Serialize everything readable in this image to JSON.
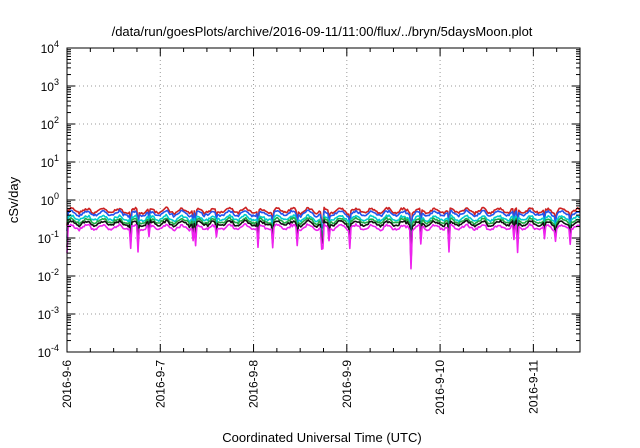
{
  "chart_data": {
    "type": "line",
    "title": "/data/run/goesPlots/archive/2016-09-11/11:00/flux/../bryn/5daysMoon.plot",
    "xlabel": "Coordinated Universal Time (UTC)",
    "ylabel": "cSv/day",
    "yscale": "log",
    "ylim": [
      0.0001,
      10000
    ],
    "xlim_days": [
      0,
      5.5
    ],
    "grid": true,
    "y_ticks": [
      {
        "exp": -4,
        "value": 0.0001
      },
      {
        "exp": -3,
        "value": 0.001
      },
      {
        "exp": -2,
        "value": 0.01
      },
      {
        "exp": -1,
        "value": 0.1
      },
      {
        "exp": 0,
        "value": 1
      },
      {
        "exp": 1,
        "value": 10
      },
      {
        "exp": 2,
        "value": 100
      },
      {
        "exp": 3,
        "value": 1000
      },
      {
        "exp": 4,
        "value": 10000
      }
    ],
    "x_ticks": [
      {
        "label": "2016-9-6",
        "day": 0
      },
      {
        "label": "2016-9-7",
        "day": 1
      },
      {
        "label": "2016-9-8",
        "day": 2
      },
      {
        "label": "2016-9-9",
        "day": 3
      },
      {
        "label": "2016-9-10",
        "day": 4
      },
      {
        "label": "2016-9-11",
        "day": 5
      }
    ],
    "series": [
      {
        "color": "#cc2222",
        "typical": 0.52
      },
      {
        "color": "#2255ee",
        "typical": 0.44
      },
      {
        "color": "#00cccc",
        "typical": 0.33
      },
      {
        "color": "#22aa44",
        "typical": 0.28
      },
      {
        "color": "#111111",
        "typical": 0.24
      },
      {
        "color": "#ee22ee",
        "typical": 0.19
      }
    ]
  }
}
